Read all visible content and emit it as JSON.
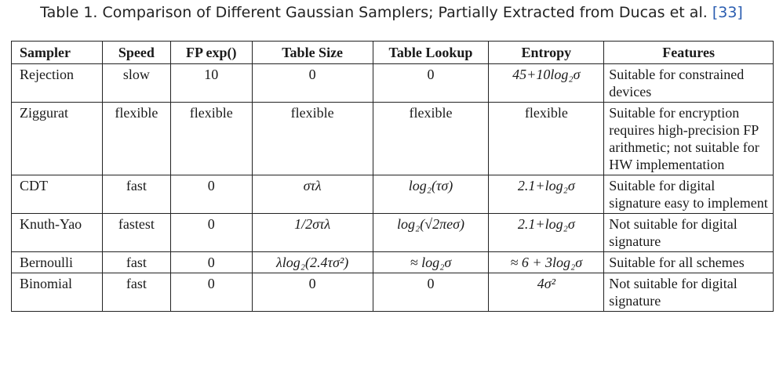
{
  "caption": {
    "text": "Table 1.  Comparison of Different Gaussian Samplers; Partially Extracted from Ducas et al. ",
    "ref": "[33]"
  },
  "headers": [
    "Sampler",
    "Speed",
    "FP exp()",
    "Table Size",
    "Table Lookup",
    "Entropy",
    "Features"
  ],
  "rows": [
    {
      "sampler": "Rejection",
      "speed": "slow",
      "fp_exp": "10",
      "table_size": "0",
      "table_lookup": "0",
      "entropy": "45+10log₂σ",
      "features": "Suitable for constrained devices"
    },
    {
      "sampler": "Ziggurat",
      "speed": "flexible",
      "fp_exp": "flexible",
      "table_size": "flexible",
      "table_lookup": "flexible",
      "entropy": "flexible",
      "features": "Suitable for encryption requires high-precision FP arithmetic; not suitable for HW implementation"
    },
    {
      "sampler": "CDT",
      "speed": "fast",
      "fp_exp": "0",
      "table_size": "στλ",
      "table_lookup": "log₂(τσ)",
      "entropy": "2.1+log₂σ",
      "features": "Suitable for digital signature easy to implement"
    },
    {
      "sampler": "Knuth-Yao",
      "speed": "fastest",
      "fp_exp": "0",
      "table_size": "1/2στλ",
      "table_lookup": "log₂(√2πeσ)",
      "entropy": "2.1+log₂σ",
      "features": "Not suitable for digital signature"
    },
    {
      "sampler": "Bernoulli",
      "speed": "fast",
      "fp_exp": "0",
      "table_size": "λlog₂(2.4τσ²)",
      "table_lookup": "≈ log₂σ",
      "entropy": "≈ 6 + 3log₂σ",
      "features": "Suitable for all schemes"
    },
    {
      "sampler": "Binomial",
      "speed": "fast",
      "fp_exp": "0",
      "table_size": "0",
      "table_lookup": "0",
      "entropy": "4σ²",
      "features": "Not suitable for digital signature"
    }
  ]
}
